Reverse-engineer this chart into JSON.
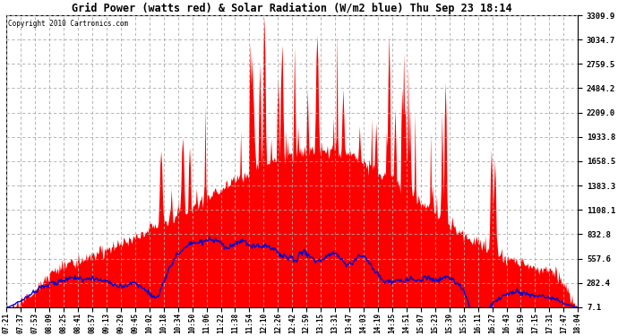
{
  "title": "Grid Power (watts red) & Solar Radiation (W/m2 blue) Thu Sep 23 18:14",
  "copyright": "Copyright 2010 Cartronics.com",
  "yticks": [
    7.1,
    282.4,
    557.6,
    832.8,
    1108.1,
    1383.3,
    1658.5,
    1933.8,
    2209.0,
    2484.2,
    2759.5,
    3034.7,
    3309.9
  ],
  "ymin": 7.1,
  "ymax": 3309.9,
  "bg_color": "#ffffff",
  "plot_bg_color": "#ffffff",
  "grid_color": "#aaaaaa",
  "red_color": "#ff0000",
  "blue_color": "#0000cc",
  "xtick_labels": [
    "07:21",
    "07:37",
    "07:53",
    "08:09",
    "08:25",
    "08:41",
    "08:57",
    "09:13",
    "09:29",
    "09:45",
    "10:02",
    "10:18",
    "10:34",
    "10:50",
    "11:06",
    "11:22",
    "11:38",
    "11:54",
    "12:10",
    "12:26",
    "12:42",
    "12:59",
    "13:15",
    "13:31",
    "13:47",
    "14:03",
    "14:19",
    "14:35",
    "14:51",
    "15:07",
    "15:23",
    "15:39",
    "15:55",
    "16:11",
    "16:27",
    "16:43",
    "16:59",
    "17:15",
    "17:31",
    "17:47",
    "18:04"
  ]
}
